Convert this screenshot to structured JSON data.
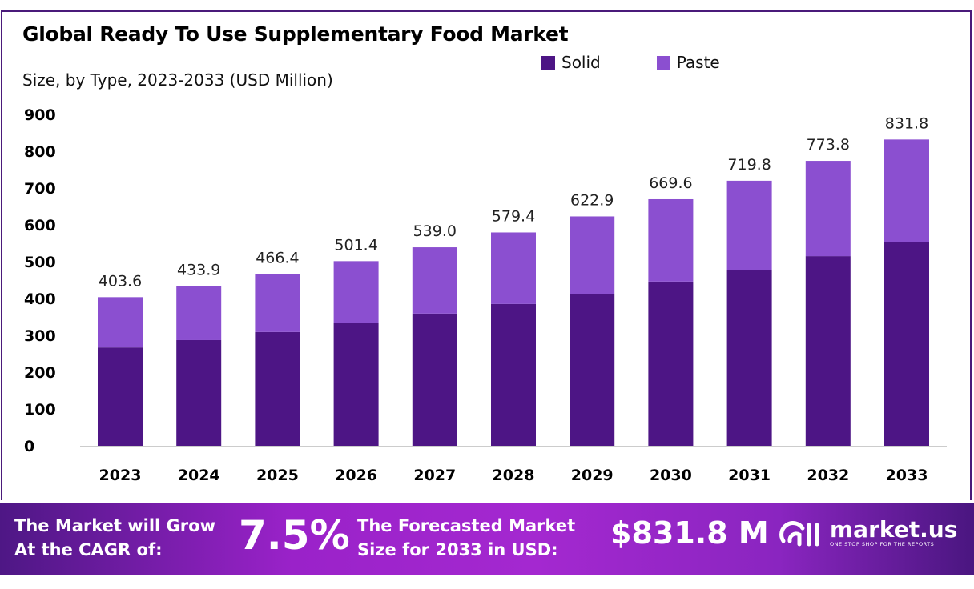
{
  "chart_data": {
    "type": "bar",
    "stacked": true,
    "title": "Global Ready To Use Supplementary  Food Market",
    "subtitle": "Size, by Type, 2023-2033 (USD Million)",
    "categories": [
      "2023",
      "2024",
      "2025",
      "2026",
      "2027",
      "2028",
      "2029",
      "2030",
      "2031",
      "2032",
      "2033"
    ],
    "series": [
      {
        "name": "Solid",
        "color": "#4d1585",
        "values": [
          267,
          287,
          309,
          333,
          359,
          385,
          413,
          446,
          478,
          515,
          554
        ]
      },
      {
        "name": "Paste",
        "color": "#8b4fd0",
        "values": [
          136.6,
          146.9,
          157.4,
          168.4,
          180.0,
          194.4,
          209.9,
          223.6,
          241.8,
          258.8,
          277.8
        ]
      }
    ],
    "totals": [
      "403.6",
      "433.9",
      "466.4",
      "501.4",
      "539.0",
      "579.4",
      "622.9",
      "669.6",
      "719.8",
      "773.8",
      "831.8"
    ],
    "yticks": [
      "0",
      "100",
      "200",
      "300",
      "400",
      "500",
      "600",
      "700",
      "800",
      "900"
    ],
    "ylim": [
      0,
      900
    ],
    "grid": false,
    "legend": "top"
  },
  "footer": {
    "cagr_label_1": "The Market will Grow",
    "cagr_label_2": "At the CAGR of:",
    "cagr_value": "7.5%",
    "forecast_label_1": "The Forecasted Market",
    "forecast_label_2": "Size for 2033 in USD:",
    "forecast_value": "$831.8 M",
    "logo_name": "market.us",
    "logo_tagline": "ONE STOP SHOP FOR THE REPORTS"
  }
}
